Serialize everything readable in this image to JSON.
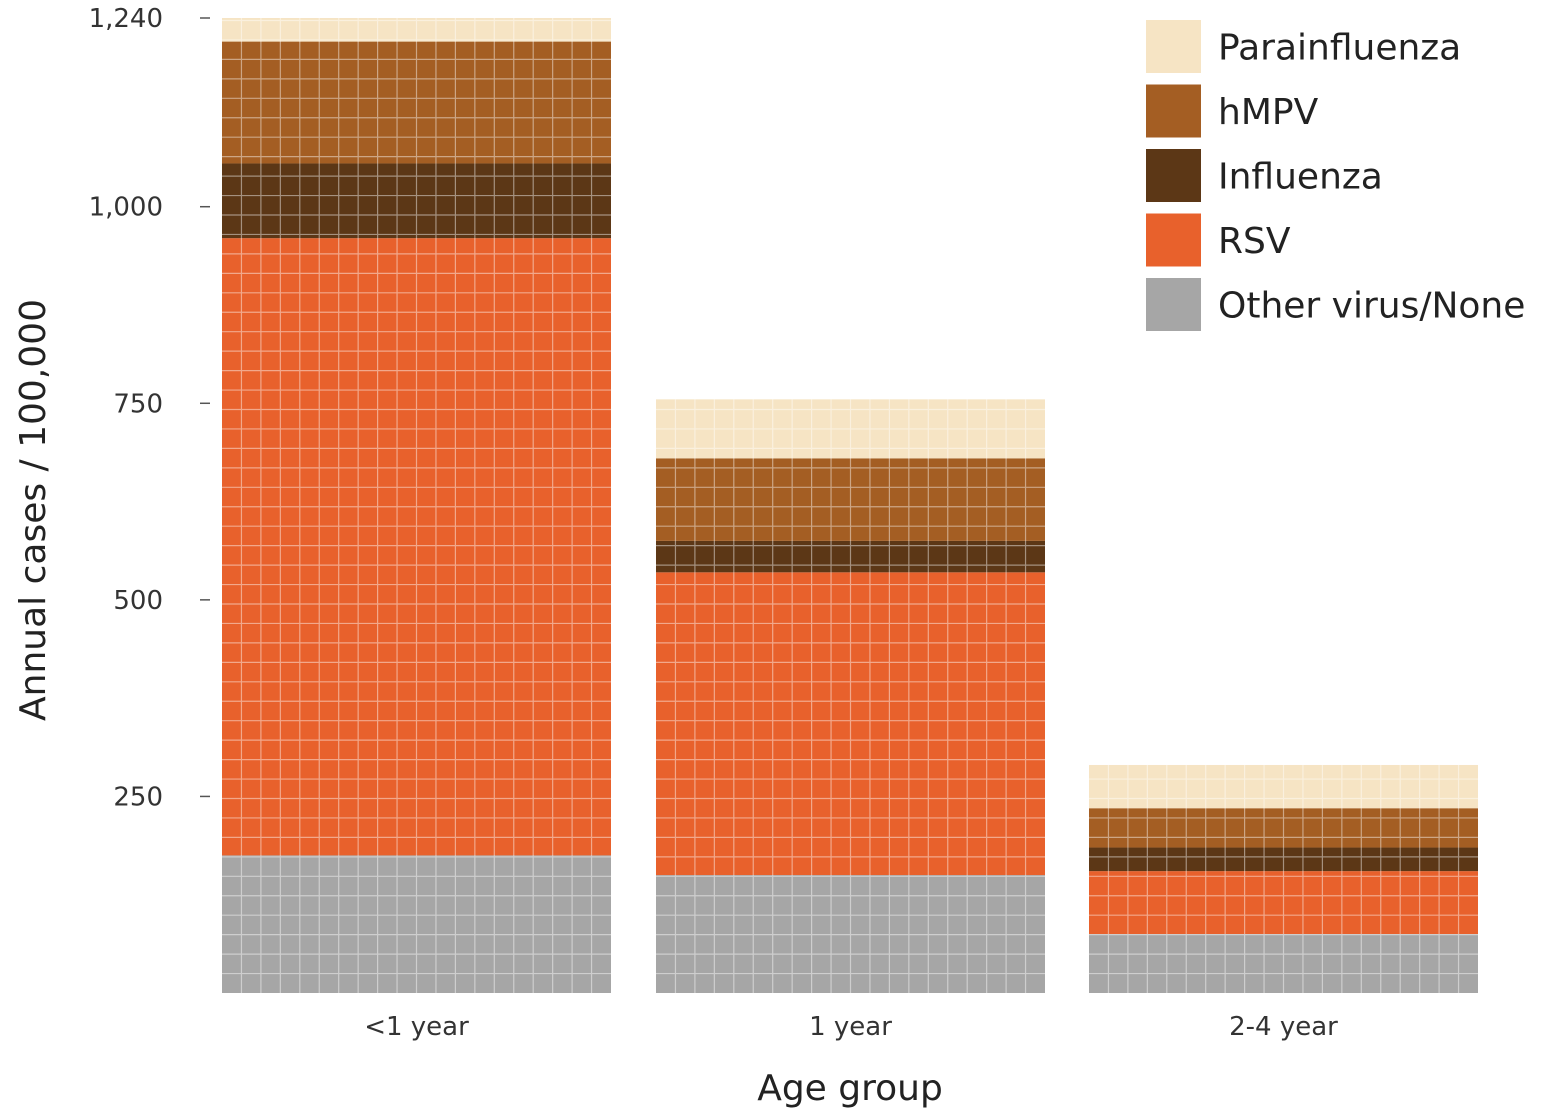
{
  "chart_data": {
    "type": "waffle",
    "title": "",
    "xlabel": "Age group",
    "ylabel": "Annual cases / 100,000",
    "categories": [
      "<1 year",
      "1 year",
      "2-4 year"
    ],
    "y_ticks": [
      {
        "value": 1240,
        "label": "1,240"
      },
      {
        "value": 1000,
        "label": "1,000"
      },
      {
        "value": 750,
        "label": "750"
      },
      {
        "value": 500,
        "label": "500"
      },
      {
        "value": 250,
        "label": "250"
      }
    ],
    "ylim": [
      0,
      1240
    ],
    "grid": false,
    "legend_position": "top-right",
    "series": [
      {
        "name": "Other virus/None",
        "color": "#a6a6a6",
        "values": [
          175,
          150,
          75
        ]
      },
      {
        "name": "RSV",
        "color": "#e8612c",
        "values": [
          785,
          385,
          80
        ]
      },
      {
        "name": "Influenza",
        "color": "#5c3716",
        "values": [
          95,
          40,
          30
        ]
      },
      {
        "name": "hMPV",
        "color": "#a45e23",
        "values": [
          155,
          105,
          50
        ]
      },
      {
        "name": "Parainfluenza",
        "color": "#f6e4c4",
        "values": [
          30,
          75,
          55
        ]
      }
    ],
    "legend_order": [
      "Parainfluenza",
      "hMPV",
      "Influenza",
      "RSV",
      "Other virus/None"
    ]
  }
}
